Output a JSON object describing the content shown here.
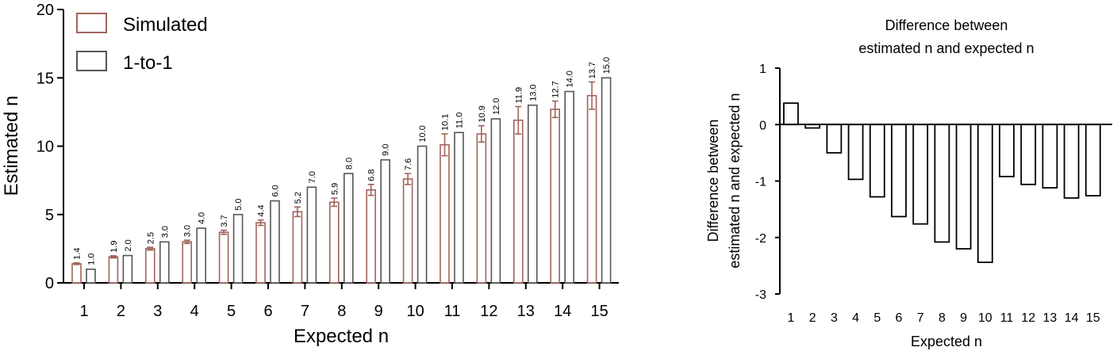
{
  "chart_data": [
    {
      "type": "bar",
      "xlabel": "Expected n",
      "ylabel": "Estimated n",
      "ylim": [
        0,
        20
      ],
      "yticks": [
        0,
        5,
        10,
        15,
        20
      ],
      "categories": [
        "1",
        "2",
        "3",
        "4",
        "5",
        "6",
        "7",
        "8",
        "9",
        "10",
        "11",
        "12",
        "13",
        "14",
        "15"
      ],
      "legend_position": "top-left",
      "series": [
        {
          "name": "Simulated",
          "color": "#a0645a",
          "values": [
            1.4,
            1.9,
            2.5,
            3.0,
            3.7,
            4.4,
            5.2,
            5.9,
            6.8,
            7.6,
            10.1,
            10.9,
            11.9,
            12.7,
            13.7
          ],
          "errors": [
            0.06,
            0.08,
            0.1,
            0.12,
            0.15,
            0.2,
            0.35,
            0.3,
            0.4,
            0.4,
            0.8,
            0.6,
            1.0,
            0.6,
            1.0
          ],
          "labels": [
            "1.4",
            "1.9",
            "2.5",
            "3.0",
            "3.7",
            "4.4",
            "5.2",
            "5.9",
            "6.8",
            "7.6",
            "10.1",
            "10.9",
            "11.9",
            "12.7",
            "13.7"
          ]
        },
        {
          "name": "1-to-1",
          "color": "#555555",
          "values": [
            1.0,
            2.0,
            3.0,
            4.0,
            5.0,
            6.0,
            7.0,
            8.0,
            9.0,
            10.0,
            11.0,
            12.0,
            13.0,
            14.0,
            15.0
          ],
          "labels": [
            "1.0",
            "2.0",
            "3.0",
            "4.0",
            "5.0",
            "6.0",
            "7.0",
            "8.0",
            "9.0",
            "10.0",
            "11.0",
            "12.0",
            "13.0",
            "14.0",
            "15.0"
          ]
        }
      ]
    },
    {
      "type": "bar",
      "title": [
        "Difference between",
        "estimated n and expected n"
      ],
      "xlabel": "Expected n",
      "ylabel": [
        "Difference between",
        "estimated n and expected n"
      ],
      "ylim": [
        -3,
        1
      ],
      "yticks": [
        -3,
        -2,
        -1,
        0,
        1
      ],
      "categories": [
        "1",
        "2",
        "3",
        "4",
        "5",
        "6",
        "7",
        "8",
        "9",
        "10",
        "11",
        "12",
        "13",
        "14",
        "15"
      ],
      "values": [
        0.38,
        -0.06,
        -0.5,
        -0.97,
        -1.28,
        -1.63,
        -1.76,
        -2.08,
        -2.2,
        -2.44,
        -0.92,
        -1.06,
        -1.12,
        -1.3,
        -1.26
      ],
      "color": "#000000"
    }
  ]
}
